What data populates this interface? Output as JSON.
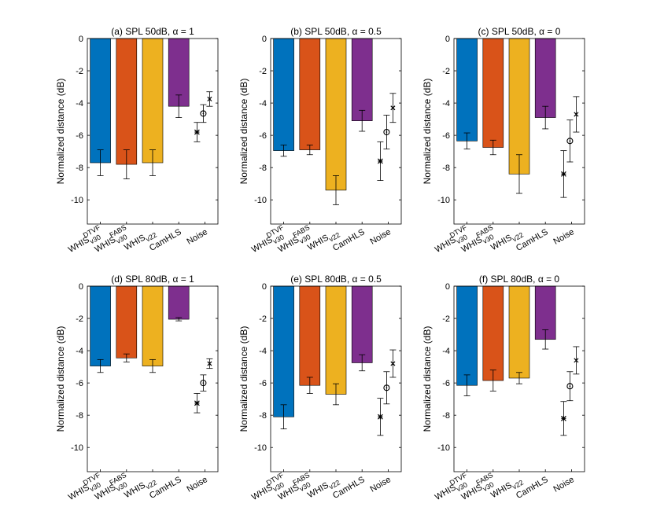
{
  "figure": {
    "y_axis_label": "Normalized distance (dB)",
    "x_tick_labels": [
      {
        "base": "WHIS",
        "sup": "DTVF",
        "sub": "v30"
      },
      {
        "base": "WHIS",
        "sup": "FABS",
        "sub": "v30"
      },
      {
        "base": "WHIS",
        "sup": "",
        "sub": "v22"
      },
      {
        "base": "CamHLS",
        "sup": "",
        "sub": ""
      },
      {
        "base": "Noise",
        "sup": "",
        "sub": ""
      }
    ],
    "y_ticks": [
      0,
      -2,
      -4,
      -6,
      -8,
      -10
    ],
    "colors": {
      "bars": [
        "#0072BD",
        "#D95319",
        "#EDB120",
        "#7E2F8E"
      ],
      "axis": "#000000"
    }
  },
  "chart_data": [
    {
      "type": "bar",
      "title": "(a)  SPL 50dB,  α = 1",
      "ylim": [
        -11.5,
        0
      ],
      "values": [
        -7.7,
        -7.8,
        -7.7,
        -4.2
      ],
      "errors": [
        0.8,
        0.9,
        0.8,
        0.7
      ],
      "noise": {
        "star": {
          "value": -5.8,
          "error": 0.6
        },
        "circle": {
          "value": -4.65,
          "error": 0.55
        },
        "cross": {
          "value": -3.75,
          "error": 0.45
        }
      }
    },
    {
      "type": "bar",
      "title": "(b)  SPL 50dB,  α = 0.5",
      "ylim": [
        -11.5,
        0
      ],
      "values": [
        -6.95,
        -6.9,
        -9.4,
        -5.1
      ],
      "errors": [
        0.35,
        0.3,
        0.9,
        0.65
      ],
      "noise": {
        "star": {
          "value": -7.6,
          "error": 1.2
        },
        "circle": {
          "value": -5.8,
          "error": 1.05
        },
        "cross": {
          "value": -4.3,
          "error": 0.9
        }
      }
    },
    {
      "type": "bar",
      "title": "(c)  SPL 50dB,  α = 0",
      "ylim": [
        -11.5,
        0
      ],
      "values": [
        -6.35,
        -6.75,
        -8.4,
        -4.9
      ],
      "errors": [
        0.5,
        0.45,
        1.2,
        0.7
      ],
      "noise": {
        "star": {
          "value": -8.4,
          "error": 1.45
        },
        "circle": {
          "value": -6.35,
          "error": 1.3
        },
        "cross": {
          "value": -4.7,
          "error": 1.1
        }
      }
    },
    {
      "type": "bar",
      "title": "(d)  SPL 80dB,  α = 1",
      "ylim": [
        -11.5,
        0
      ],
      "values": [
        -4.95,
        -4.45,
        -4.95,
        -2.05
      ],
      "errors": [
        0.4,
        0.25,
        0.4,
        0.1
      ],
      "noise": {
        "star": {
          "value": -7.25,
          "error": 0.6
        },
        "circle": {
          "value": -6.0,
          "error": 0.5
        },
        "cross": {
          "value": -4.8,
          "error": 0.3
        }
      }
    },
    {
      "type": "bar",
      "title": "(e)  SPL 80dB,  α = 0.5",
      "ylim": [
        -11.5,
        0
      ],
      "values": [
        -8.1,
        -6.15,
        -6.7,
        -4.75
      ],
      "errors": [
        0.75,
        0.5,
        0.65,
        0.5
      ],
      "noise": {
        "star": {
          "value": -8.1,
          "error": 1.15
        },
        "circle": {
          "value": -6.3,
          "error": 1.0
        },
        "cross": {
          "value": -4.8,
          "error": 0.85
        }
      }
    },
    {
      "type": "bar",
      "title": "(f)  SPL 80dB,  α = 0",
      "ylim": [
        -11.5,
        0
      ],
      "values": [
        -6.15,
        -5.85,
        -5.7,
        -3.3
      ],
      "errors": [
        0.65,
        0.65,
        0.35,
        0.6
      ],
      "noise": {
        "star": {
          "value": -8.2,
          "error": 1.05
        },
        "circle": {
          "value": -6.2,
          "error": 0.9
        },
        "cross": {
          "value": -4.6,
          "error": 0.85
        }
      }
    }
  ]
}
